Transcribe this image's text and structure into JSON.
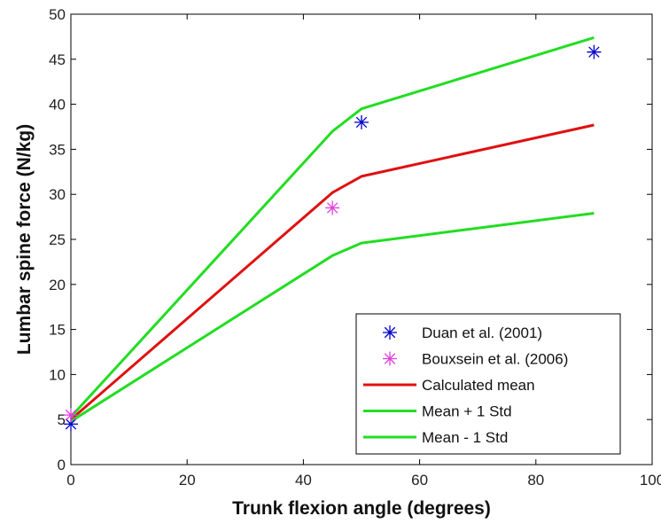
{
  "chart_data": {
    "type": "line",
    "xlabel": "Trunk flexion angle (degrees)",
    "ylabel": "Lumbar spine force (N/kg)",
    "xlim": [
      0,
      100
    ],
    "ylim": [
      0,
      50
    ],
    "xticks": [
      0,
      20,
      40,
      60,
      80,
      100
    ],
    "yticks": [
      0,
      5,
      10,
      15,
      20,
      25,
      30,
      35,
      40,
      45,
      50
    ],
    "grid": false,
    "legend_position": "bottom-right",
    "series": [
      {
        "name": "Duan et al. (2001)",
        "kind": "scatter",
        "marker": "asterisk",
        "color": "#0000cc",
        "points": [
          [
            0,
            4.5
          ],
          [
            50,
            38
          ],
          [
            90,
            45.8
          ]
        ]
      },
      {
        "name": "Bouxsein et al. (2006)",
        "kind": "scatter",
        "marker": "asterisk",
        "color": "#e040e0",
        "points": [
          [
            0,
            5.5
          ],
          [
            45,
            28.5
          ]
        ]
      },
      {
        "name": "Calculated mean",
        "kind": "line",
        "color": "#e01010",
        "points": [
          [
            0,
            5
          ],
          [
            45,
            30.2
          ],
          [
            50,
            32
          ],
          [
            90,
            37.7
          ]
        ]
      },
      {
        "name": "Mean + 1 Std",
        "kind": "line",
        "color": "#22dd22",
        "points": [
          [
            0,
            5.3
          ],
          [
            45,
            37
          ],
          [
            50,
            39.5
          ],
          [
            90,
            47.4
          ]
        ]
      },
      {
        "name": "Mean - 1 Std",
        "kind": "line",
        "color": "#22dd22",
        "points": [
          [
            0,
            4.8
          ],
          [
            45,
            23.2
          ],
          [
            50,
            24.6
          ],
          [
            90,
            27.9
          ]
        ]
      }
    ]
  }
}
